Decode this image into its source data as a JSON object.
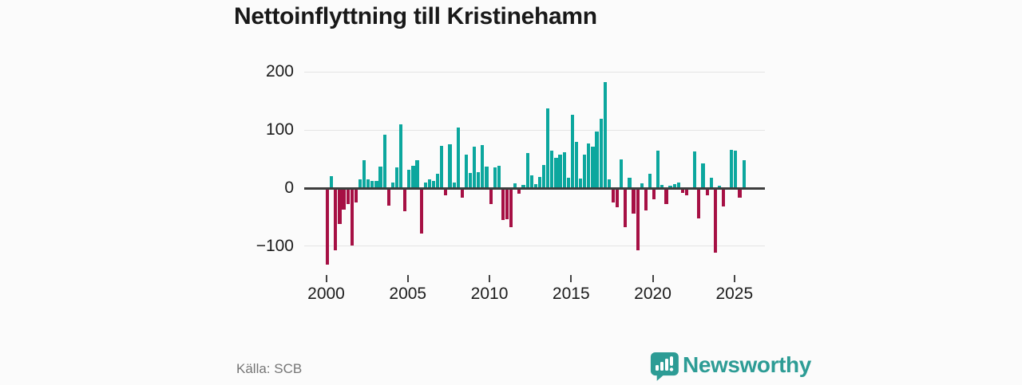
{
  "title": "Nettoinflyttning till Kristinehamn",
  "source": "Källa: SCB",
  "logo": {
    "text": "Newsworthy",
    "icon": "newsworthy-speech-bubble-chart-icon"
  },
  "colors": {
    "positive": "#0CA79E",
    "negative": "#A61044",
    "grid": "#E4E4E4",
    "zero_line": "#3D3D3D",
    "axis_text": "#1C1C1C",
    "source_text": "#757575",
    "logo": "#2D9C95",
    "background": "#FBFBFB"
  },
  "chart_data": {
    "type": "bar",
    "title": "Nettoinflyttning till Kristinehamn",
    "frequency": "quarterly",
    "x_start": {
      "year": 2000,
      "quarter": 1
    },
    "x_tick_labels": [
      "2000",
      "2005",
      "2010",
      "2015",
      "2020",
      "2025"
    ],
    "y_ticks": [
      {
        "value": 200,
        "label": "200"
      },
      {
        "value": 100,
        "label": "100"
      },
      {
        "value": 0,
        "label": "0"
      },
      {
        "value": -100,
        "label": "−100"
      }
    ],
    "ylim": [
      -140,
      210
    ],
    "grid": true,
    "legend": "none",
    "values": [
      -130,
      20,
      -106,
      -60,
      -35,
      -26,
      -97,
      -23,
      15,
      48,
      15,
      13,
      12,
      37,
      92,
      -29,
      10,
      36,
      110,
      -38,
      32,
      38,
      48,
      -76,
      10,
      15,
      13,
      25,
      73,
      -11,
      76,
      10,
      105,
      -15,
      58,
      26,
      72,
      28,
      74,
      37,
      -26,
      36,
      38,
      -54,
      -52,
      -65,
      8,
      -8,
      5,
      61,
      22,
      7,
      19,
      40,
      137,
      64,
      52,
      58,
      62,
      18,
      127,
      79,
      17,
      58,
      77,
      71,
      97,
      120,
      183,
      15,
      -23,
      -32,
      49,
      -65,
      18,
      -42,
      -106,
      8,
      -37,
      25,
      -18,
      64,
      5,
      -26,
      4,
      7,
      9,
      -6,
      -11,
      0,
      63,
      -50,
      43,
      -11,
      18,
      -109,
      4,
      -30,
      0,
      66,
      65,
      -15,
      48
    ]
  }
}
